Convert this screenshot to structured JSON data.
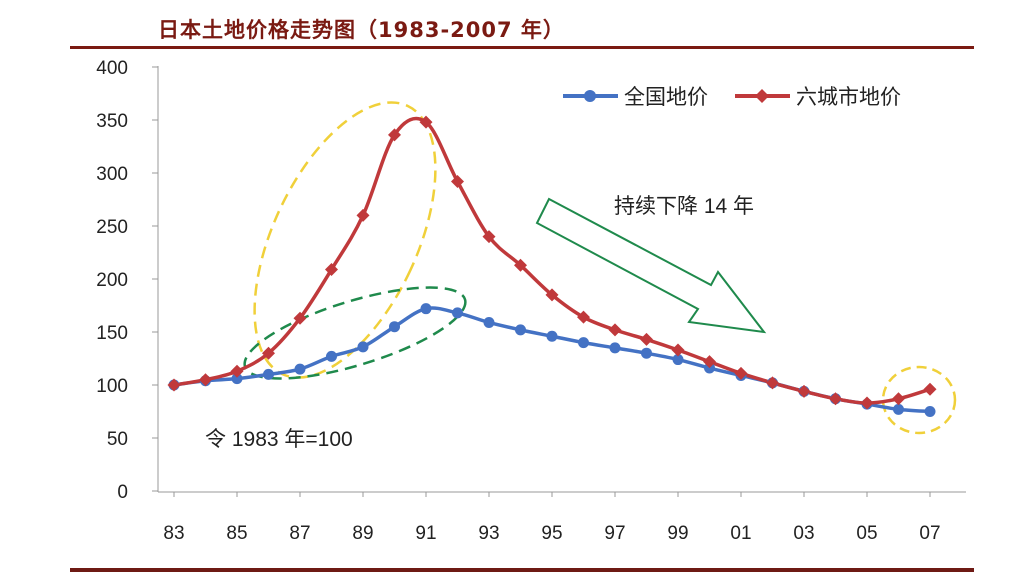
{
  "chart_data": {
    "type": "line",
    "title": "日本土地价格走势图（1983-2007 年）",
    "xlabel": "",
    "ylabel": "",
    "x_tick_labels": [
      "83",
      "85",
      "87",
      "89",
      "91",
      "93",
      "95",
      "97",
      "99",
      "01",
      "03",
      "05",
      "07"
    ],
    "y_tick_labels": [
      "0",
      "50",
      "100",
      "150",
      "200",
      "250",
      "300",
      "350",
      "400"
    ],
    "ylim": [
      0,
      400
    ],
    "x": [
      1983,
      1984,
      1985,
      1986,
      1987,
      1988,
      1989,
      1990,
      1991,
      1992,
      1993,
      1994,
      1995,
      1996,
      1997,
      1998,
      1999,
      2000,
      2001,
      2002,
      2003,
      2004,
      2005,
      2006,
      2007
    ],
    "series": [
      {
        "name": "全国地价",
        "color": "#4472c4",
        "marker": "circle",
        "values": [
          100,
          104,
          106,
          110,
          115,
          127,
          136,
          155,
          172,
          168,
          159,
          152,
          146,
          140,
          135,
          130,
          124,
          116,
          109,
          102,
          94,
          87,
          82,
          77,
          75
        ]
      },
      {
        "name": "六城市地价",
        "color": "#c0393b",
        "marker": "diamond",
        "values": [
          100,
          105,
          113,
          130,
          163,
          209,
          260,
          336,
          348,
          292,
          240,
          213,
          185,
          164,
          152,
          143,
          133,
          122,
          111,
          102,
          94,
          87,
          83,
          87,
          96
        ]
      }
    ],
    "legend_position": "top-right",
    "grid": false,
    "annotations": {
      "decline_text": "持续下降 14 年",
      "base_note": "令 1983 年=100"
    }
  }
}
